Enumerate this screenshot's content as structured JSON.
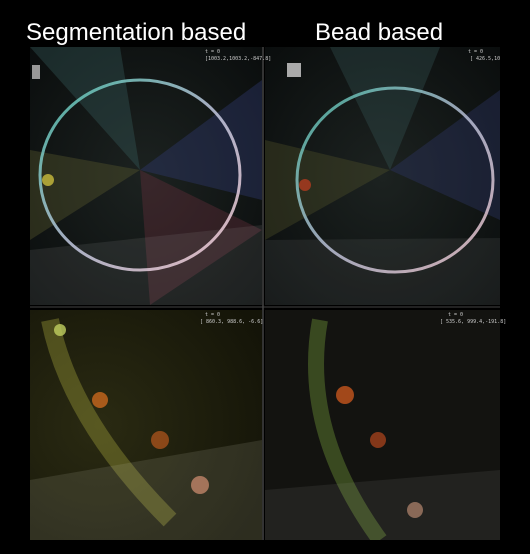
{
  "headings": [
    "Segmentation based",
    "Bead based"
  ],
  "panels": [
    {
      "label": "t = 0",
      "coords": "[1003.2,1003.2,-847.8]"
    },
    {
      "label": "t = 0",
      "coords": "[ 426.5,10"
    },
    {
      "label": "t = 0",
      "coords": "[ 860.3, 988.6, -6.6]"
    },
    {
      "label": "t = 0",
      "coords": "[ 535.6, 999.4,-191.8]"
    }
  ]
}
